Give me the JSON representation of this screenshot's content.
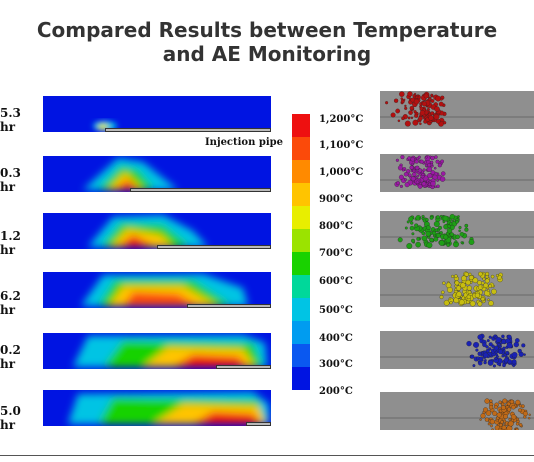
{
  "title": {
    "line1": "Compared Results between Temperature",
    "line2": "and AE Monitoring"
  },
  "times": [
    "5.3 hr",
    "0.3 hr",
    "1.2 hr",
    "6.2 hr",
    "0.2 hr",
    "5.0 hr"
  ],
  "pipe_label": "Injection pipe",
  "pipe_start_fraction": [
    0.27,
    0.38,
    0.5,
    0.63,
    0.76,
    0.89
  ],
  "color_scale": {
    "labels": [
      "1,200°C",
      "1,100°C",
      "1,000°C",
      "900°C",
      "800°C",
      "700°C",
      "600°C",
      "500°C",
      "400°C",
      "300°C",
      "200°C"
    ],
    "colors": [
      "#ee1010",
      "#fb4a0a",
      "#ff8a00",
      "#ffc400",
      "#e8ee00",
      "#9be300",
      "#19d200",
      "#00d89a",
      "#00c4e4",
      "#009cf0",
      "#0a58f0",
      "#0014e2"
    ]
  },
  "ae_colors": [
    "#b31010",
    "#9a1aa4",
    "#1e9e16",
    "#c8be10",
    "#1a22b4",
    "#c06a18"
  ]
}
